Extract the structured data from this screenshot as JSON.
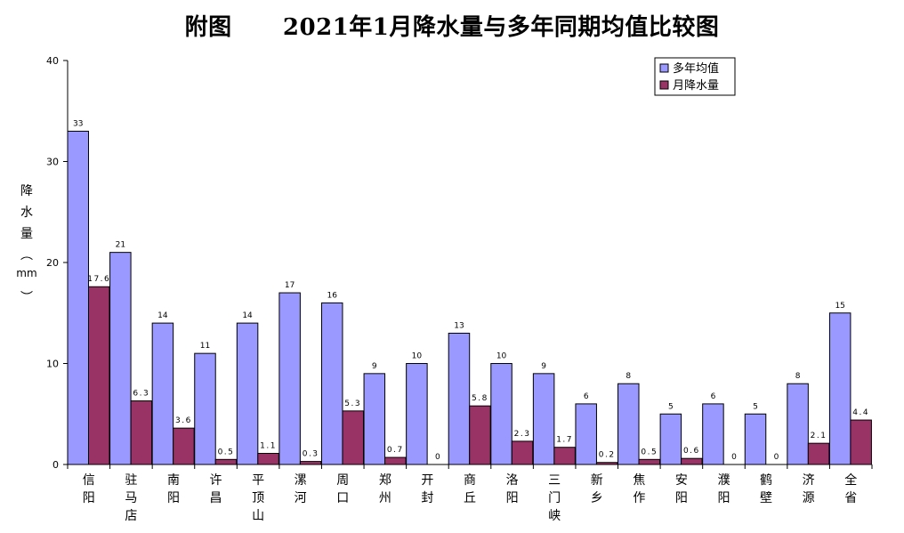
{
  "title": "附图      2021年1月降水量与多年同期均值比较图",
  "chart_data": {
    "type": "bar",
    "ylabel": "降水量（mm）",
    "ylim": [
      0,
      40
    ],
    "yticks": [
      "0",
      "10",
      "20",
      "30",
      "40"
    ],
    "categories": [
      "信阳",
      "驻马店",
      "南阳",
      "许昌",
      "平顶山",
      "漯河",
      "周口",
      "郑州",
      "开封",
      "商丘",
      "洛阳",
      "三门峡",
      "新乡",
      "焦作",
      "安阳",
      "濮阳",
      "鹤壁",
      "济源",
      "全省"
    ],
    "series": [
      {
        "name": "多年均值",
        "color": "#9999ff",
        "values": [
          33,
          21,
          14,
          11,
          14,
          17,
          16,
          9,
          10,
          13,
          10,
          9,
          6,
          8,
          5,
          6,
          5,
          8,
          15
        ],
        "labels": [
          "33",
          "21",
          "14",
          "11",
          "14",
          "17",
          "16",
          "9",
          "10",
          "13",
          "10",
          "9",
          "6",
          "8",
          "5",
          "6",
          "5",
          "8",
          "15"
        ]
      },
      {
        "name": "月降水量",
        "color": "#993366",
        "values": [
          17.6,
          6.3,
          3.6,
          0.5,
          1.1,
          0.3,
          5.3,
          0.7,
          0,
          5.8,
          2.3,
          1.7,
          0.2,
          0.5,
          0.6,
          0,
          0,
          2.1,
          4.4
        ],
        "labels": [
          "17.6",
          "6.3",
          "3.6",
          "0.5",
          "1.1",
          "0.3",
          "5.3",
          "0.7",
          "0",
          "5.8",
          "2.3",
          "1.7",
          "0.2",
          "0.5",
          "0.6",
          "0",
          "0",
          "2.1",
          "4.4"
        ]
      }
    ],
    "legend": "top-right",
    "grid": false
  }
}
